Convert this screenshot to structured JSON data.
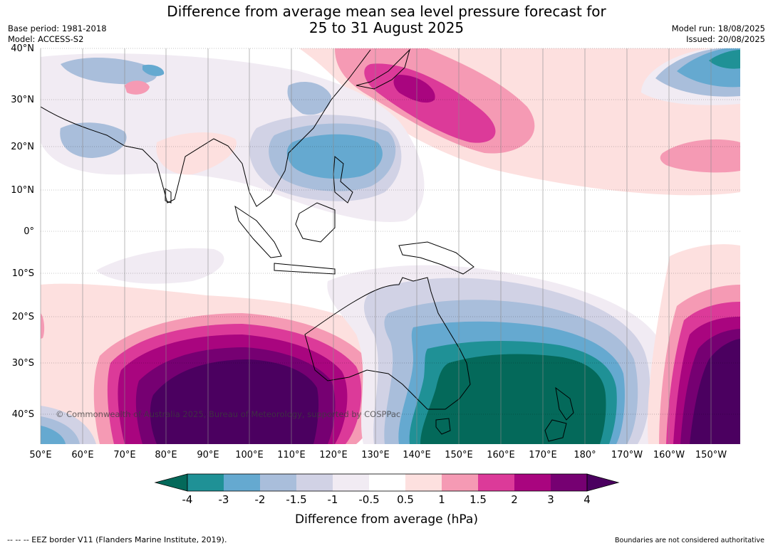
{
  "title_line1": "Difference from average mean sea level pressure forecast for",
  "title_line2": "25 to 31 August 2025",
  "base_period": "Base period: 1981-2018",
  "model": "Model: ACCESS-S2",
  "model_run": "Model run: 18/08/2025",
  "issued": "Issued: 20/08/2025",
  "y_ticks": [
    "40°N",
    "30°N",
    "20°N",
    "10°N",
    "0°",
    "10°S",
    "20°S",
    "30°S",
    "40°S"
  ],
  "x_ticks": [
    "50°E",
    "60°E",
    "70°E",
    "80°E",
    "90°E",
    "100°E",
    "110°E",
    "120°E",
    "130°E",
    "140°E",
    "150°E",
    "160°E",
    "170°E",
    "180°",
    "170°W",
    "160°W",
    "150°W"
  ],
  "copyright": "© Commonwealth of Australia 2025, Bureau of Meteorology, supported by COSPPac",
  "colorbar": {
    "ticks": [
      "-4",
      "-3",
      "-2",
      "-1.5",
      "-1",
      "-0.5",
      "0.5",
      "1",
      "1.5",
      "2",
      "3",
      "4"
    ],
    "colors": [
      "#04695a",
      "#1f9196",
      "#65a9d0",
      "#a9bedb",
      "#d1d2e5",
      "#f1ebf3",
      "#ffffff",
      "#fde0df",
      "#f59ab4",
      "#dc3a99",
      "#a9057f",
      "#760072",
      "#4b0060"
    ],
    "label": "Difference from average (hPa)"
  },
  "footer_left": "--  --  -- EEZ border V11 (Flanders Marine Institute, 2019).",
  "footer_right": "Boundaries are not considered authoritative"
}
